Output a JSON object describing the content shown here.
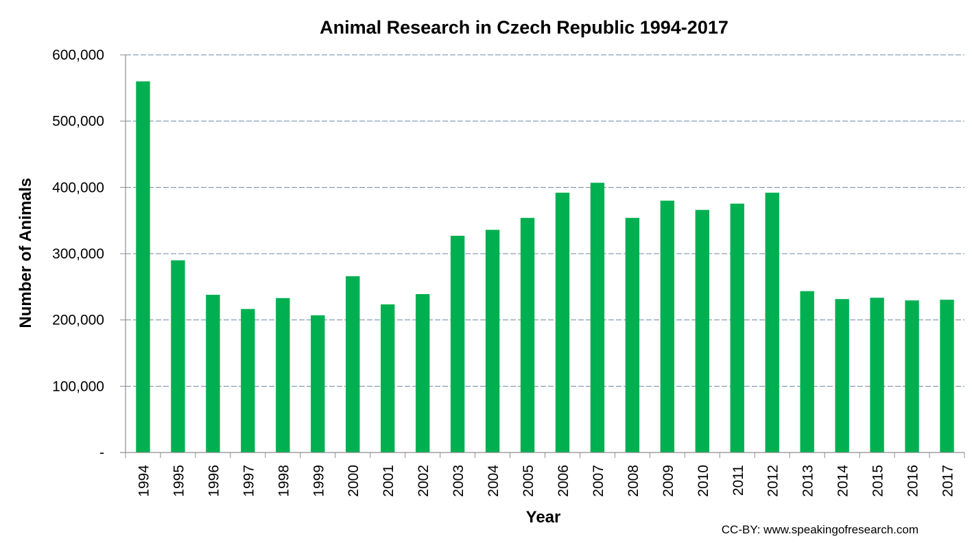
{
  "chart_data": {
    "type": "bar",
    "title": "Animal Research in Czech Republic 1994-2017",
    "xlabel": "Year",
    "ylabel": "Number of Animals",
    "ylim": [
      0,
      600000
    ],
    "yticks": [
      0,
      100000,
      200000,
      300000,
      400000,
      500000,
      600000
    ],
    "ytick_labels": [
      "-",
      "100,000",
      "200,000",
      "300,000",
      "400,000",
      "500,000",
      "600,000"
    ],
    "grid": true,
    "legend": "none",
    "categories": [
      "1994",
      "1995",
      "1996",
      "1997",
      "1998",
      "1999",
      "2000",
      "2001",
      "2002",
      "2003",
      "2004",
      "2005",
      "2006",
      "2007",
      "2008",
      "2009",
      "2010",
      "2011",
      "2012",
      "2013",
      "2014",
      "2015",
      "2016",
      "2017"
    ],
    "values": [
      560000,
      290000,
      238000,
      216500,
      233000,
      207000,
      266000,
      223500,
      239000,
      327000,
      336000,
      354000,
      392000,
      407000,
      354000,
      380000,
      366000,
      375500,
      392000,
      243500,
      231500,
      233500,
      229500,
      230500
    ],
    "bar_color": "#00B050",
    "grid_color": "#6C8AA6",
    "credit": "CC-BY: www.speakingofresearch.com"
  }
}
